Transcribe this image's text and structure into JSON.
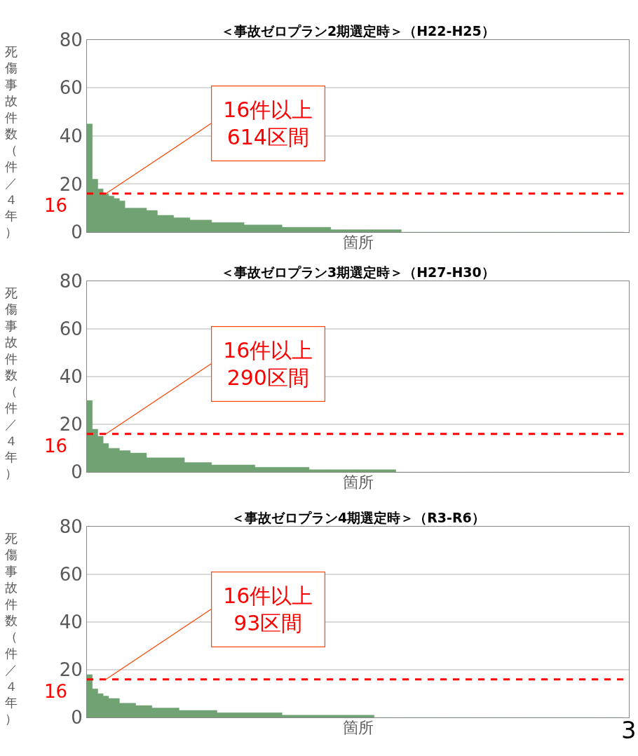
{
  "chart_data": [
    {
      "type": "area",
      "title": "＜事故ゼロプラン2期選定時＞（H22-H25）",
      "xlabel": "箇所",
      "ylabel": "死傷事故件数（件／４年）",
      "categories": [
        null,
        null,
        null,
        null,
        null,
        null,
        null,
        null,
        null,
        null,
        null,
        null,
        null,
        null,
        null,
        null,
        null,
        null,
        null,
        null,
        null,
        null,
        null,
        null,
        null,
        null,
        null,
        null,
        null,
        null,
        null,
        null,
        null,
        null,
        null,
        null,
        null,
        null,
        null,
        null,
        null,
        null,
        null,
        null,
        null,
        null,
        null,
        null,
        null,
        null,
        null,
        null,
        null,
        null,
        null,
        null,
        null,
        null,
        null,
        null,
        null,
        null,
        null,
        null,
        null,
        null,
        null,
        null,
        null,
        null,
        null,
        null,
        null,
        null,
        null,
        null,
        null,
        null,
        null,
        null,
        null,
        null,
        null,
        null,
        null,
        null,
        null,
        null,
        null,
        null,
        null,
        null,
        null,
        null,
        null,
        null,
        null,
        null,
        null,
        null
      ],
      "values": [
        45,
        22,
        18,
        16,
        15,
        14,
        13,
        10,
        10,
        10,
        10,
        9,
        9,
        7,
        7,
        7,
        6,
        6,
        6,
        5,
        5,
        5,
        5,
        4,
        4,
        4,
        4,
        4,
        4,
        3,
        3,
        3,
        3,
        3,
        3,
        3,
        2,
        2,
        2,
        2,
        2,
        2,
        2,
        2,
        2,
        1,
        1,
        1,
        1,
        1,
        1,
        1,
        1,
        1,
        1,
        1,
        1,
        1,
        0,
        0,
        0,
        0,
        0,
        0,
        0,
        0,
        0,
        0,
        0,
        0,
        0,
        0,
        0,
        0,
        0,
        0,
        0,
        0,
        0,
        0,
        0,
        0,
        0,
        0,
        0,
        0,
        0,
        0,
        0,
        0,
        0,
        0,
        0,
        0,
        0,
        0,
        0,
        0,
        0,
        0
      ],
      "color": "#70a274",
      "ylim": [
        0,
        80
      ],
      "yticks": [
        0,
        20,
        40,
        60,
        80
      ],
      "grid": "y",
      "ref_lines": [
        {
          "axis": "y",
          "value": 16,
          "label": "16",
          "color": "#ff0000",
          "line_style": "dashed"
        }
      ],
      "annotations": [
        "16件以上\n614区間"
      ]
    },
    {
      "type": "area",
      "title": "＜事故ゼロプラン3期選定時＞（H27-H30）",
      "xlabel": "箇所",
      "ylabel": "死傷事故件数（件／４年）",
      "categories": [
        null,
        null,
        null,
        null,
        null,
        null,
        null,
        null,
        null,
        null,
        null,
        null,
        null,
        null,
        null,
        null,
        null,
        null,
        null,
        null,
        null,
        null,
        null,
        null,
        null,
        null,
        null,
        null,
        null,
        null,
        null,
        null,
        null,
        null,
        null,
        null,
        null,
        null,
        null,
        null,
        null,
        null,
        null,
        null,
        null,
        null,
        null,
        null,
        null,
        null,
        null,
        null,
        null,
        null,
        null,
        null,
        null,
        null,
        null,
        null,
        null,
        null,
        null,
        null,
        null,
        null,
        null,
        null,
        null,
        null,
        null,
        null,
        null,
        null,
        null,
        null,
        null,
        null,
        null,
        null,
        null,
        null,
        null,
        null,
        null,
        null,
        null,
        null,
        null,
        null,
        null,
        null,
        null,
        null,
        null,
        null,
        null,
        null,
        null,
        null
      ],
      "values": [
        30,
        18,
        15,
        12,
        10,
        10,
        9,
        9,
        8,
        8,
        8,
        6,
        6,
        6,
        6,
        6,
        6,
        6,
        4,
        4,
        4,
        4,
        4,
        3,
        3,
        3,
        3,
        3,
        3,
        3,
        3,
        2,
        2,
        2,
        2,
        2,
        2,
        2,
        2,
        2,
        2,
        1,
        1,
        1,
        1,
        1,
        1,
        1,
        1,
        1,
        1,
        1,
        1,
        1,
        1,
        1,
        1,
        0,
        0,
        0,
        0,
        0,
        0,
        0,
        0,
        0,
        0,
        0,
        0,
        0,
        0,
        0,
        0,
        0,
        0,
        0,
        0,
        0,
        0,
        0,
        0,
        0,
        0,
        0,
        0,
        0,
        0,
        0,
        0,
        0,
        0,
        0,
        0,
        0,
        0,
        0,
        0,
        0,
        0,
        0
      ],
      "color": "#70a274",
      "ylim": [
        0,
        80
      ],
      "yticks": [
        0,
        20,
        40,
        60,
        80
      ],
      "grid": "y",
      "ref_lines": [
        {
          "axis": "y",
          "value": 16,
          "label": "16",
          "color": "#ff0000",
          "line_style": "dashed"
        }
      ],
      "annotations": [
        "16件以上\n290区間"
      ]
    },
    {
      "type": "area",
      "title": "＜事故ゼロプラン4期選定時＞（R3-R6）",
      "xlabel": "箇所",
      "ylabel": "死傷事故件数（件／４年）",
      "categories": [
        null,
        null,
        null,
        null,
        null,
        null,
        null,
        null,
        null,
        null,
        null,
        null,
        null,
        null,
        null,
        null,
        null,
        null,
        null,
        null,
        null,
        null,
        null,
        null,
        null,
        null,
        null,
        null,
        null,
        null,
        null,
        null,
        null,
        null,
        null,
        null,
        null,
        null,
        null,
        null,
        null,
        null,
        null,
        null,
        null,
        null,
        null,
        null,
        null,
        null,
        null,
        null,
        null,
        null,
        null,
        null,
        null,
        null,
        null,
        null,
        null,
        null,
        null,
        null,
        null,
        null,
        null,
        null,
        null,
        null,
        null,
        null,
        null,
        null,
        null,
        null,
        null,
        null,
        null,
        null,
        null,
        null,
        null,
        null,
        null,
        null,
        null,
        null,
        null,
        null,
        null,
        null,
        null,
        null,
        null,
        null,
        null,
        null,
        null,
        null
      ],
      "values": [
        18,
        12,
        10,
        9,
        8,
        8,
        6,
        6,
        6,
        5,
        5,
        5,
        4,
        4,
        4,
        4,
        4,
        3,
        3,
        3,
        3,
        3,
        3,
        3,
        2,
        2,
        2,
        2,
        2,
        2,
        2,
        2,
        2,
        2,
        2,
        2,
        1,
        1,
        1,
        1,
        1,
        1,
        1,
        1,
        1,
        1,
        1,
        1,
        1,
        1,
        1,
        1,
        1,
        0,
        0,
        0,
        0,
        0,
        0,
        0,
        0,
        0,
        0,
        0,
        0,
        0,
        0,
        0,
        0,
        0,
        0,
        0,
        0,
        0,
        0,
        0,
        0,
        0,
        0,
        0,
        0,
        0,
        0,
        0,
        0,
        0,
        0,
        0,
        0,
        0,
        0,
        0,
        0,
        0,
        0,
        0,
        0,
        0,
        0,
        0
      ],
      "color": "#70a274",
      "ylim": [
        0,
        80
      ],
      "yticks": [
        0,
        20,
        40,
        60,
        80
      ],
      "grid": "y",
      "ref_lines": [
        {
          "axis": "y",
          "value": 16,
          "label": "16",
          "color": "#ff0000",
          "line_style": "dashed"
        }
      ],
      "annotations": [
        "16件以上\n93区間",
        "3"
      ]
    }
  ]
}
